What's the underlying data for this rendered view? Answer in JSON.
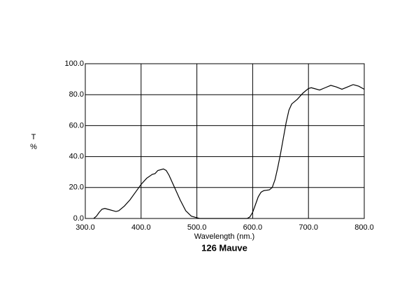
{
  "chart_data": {
    "type": "line",
    "title": "126 Mauve",
    "xlabel": "Wavelength (nm.)",
    "ylabel": [
      "T",
      "%"
    ],
    "x": [
      315,
      320,
      325,
      330,
      335,
      340,
      350,
      355,
      360,
      370,
      380,
      390,
      400,
      410,
      420,
      425,
      430,
      440,
      445,
      450,
      460,
      470,
      480,
      490,
      500,
      505,
      550,
      590,
      595,
      600,
      605,
      610,
      615,
      620,
      630,
      635,
      640,
      645,
      650,
      655,
      660,
      665,
      670,
      680,
      690,
      700,
      705,
      710,
      720,
      730,
      740,
      750,
      760,
      770,
      780,
      790,
      800
    ],
    "series": [
      {
        "color": "#000000",
        "values": [
          0,
          1.5,
          4,
          6,
          6.5,
          6,
          5,
          4.5,
          5,
          8,
          12,
          17,
          22,
          26,
          28.5,
          29,
          31,
          32,
          31,
          28,
          20,
          12,
          5,
          1.5,
          0.5,
          0,
          0,
          0,
          1,
          4,
          9,
          14,
          17,
          18,
          18.5,
          20,
          25,
          33,
          42,
          52,
          62,
          70,
          74,
          77,
          81,
          84,
          84.5,
          84,
          83,
          84.5,
          86,
          85,
          83.5,
          85,
          86.5,
          85.5,
          83.5
        ]
      }
    ],
    "xlim": [
      300,
      800
    ],
    "ylim": [
      0,
      100
    ],
    "xticks": [
      {
        "value": 300,
        "label": "300.0"
      },
      {
        "value": 400,
        "label": "400.0"
      },
      {
        "value": 500,
        "label": "500.0"
      },
      {
        "value": 600,
        "label": "600.0"
      },
      {
        "value": 700,
        "label": "700.0"
      },
      {
        "value": 800,
        "label": "800.0"
      }
    ],
    "yticks": [
      {
        "value": 0,
        "label": "0.0"
      },
      {
        "value": 20,
        "label": "20.0"
      },
      {
        "value": 40,
        "label": "40.0"
      },
      {
        "value": 60,
        "label": "60.0"
      },
      {
        "value": 80,
        "label": "80.0"
      },
      {
        "value": 100,
        "label": "100.0"
      }
    ],
    "grid": true
  }
}
